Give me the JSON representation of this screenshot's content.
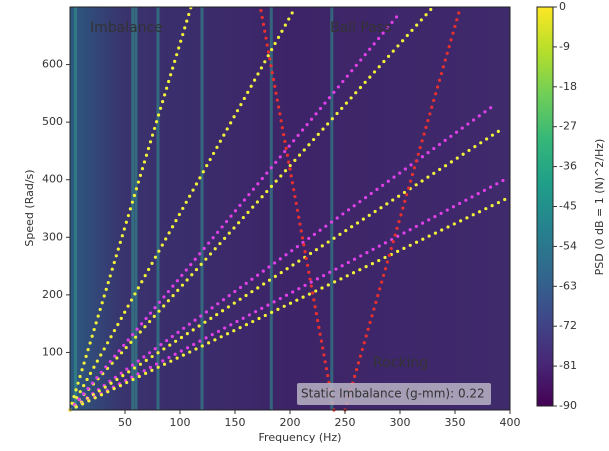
{
  "chart_data": {
    "type": "line",
    "x_label": "Frequency (Hz)",
    "y_label": "Speed (Rad/s)",
    "xlim": [
      0,
      400
    ],
    "ylim": [
      0,
      700
    ],
    "xticks": [
      50,
      100,
      150,
      200,
      250,
      300,
      350,
      400
    ],
    "yticks": [
      100,
      200,
      300,
      400,
      500,
      600
    ],
    "colorbar": {
      "label": "PSD (0 dB = 1 (N)^2/Hz)",
      "zlim": [
        -90,
        0
      ],
      "ticks": [
        0,
        -9,
        -18,
        -27,
        -36,
        -45,
        -54,
        -63,
        -72,
        -81,
        -90
      ],
      "colormap": "viridis"
    },
    "bands": [
      5,
      57,
      60,
      80,
      120,
      183,
      238
    ],
    "series": [
      {
        "color": "#f2f23a",
        "x": [
          0,
          110
        ],
        "values": [
          0,
          700
        ]
      },
      {
        "color": "#f2f23a",
        "x": [
          0,
          205
        ],
        "values": [
          0,
          700
        ]
      },
      {
        "color": "#f2f23a",
        "x": [
          0,
          330
        ],
        "values": [
          0,
          700
        ]
      },
      {
        "color": "#e040e8",
        "x": [
          0,
          300
        ],
        "values": [
          0,
          690
        ]
      },
      {
        "color": "#e040e8",
        "x": [
          0,
          386
        ],
        "values": [
          0,
          530
        ]
      },
      {
        "color": "#f2f23a",
        "x": [
          0,
          391
        ],
        "values": [
          0,
          486
        ]
      },
      {
        "color": "#e040e8",
        "x": [
          0,
          395
        ],
        "values": [
          0,
          400
        ]
      },
      {
        "color": "#f2f23a",
        "x": [
          0,
          400
        ],
        "values": [
          0,
          370
        ]
      },
      {
        "color": "#e8302e",
        "x": [
          240,
          173
        ],
        "values": [
          0,
          700
        ]
      },
      {
        "color": "#e8302e",
        "x": [
          250,
          355
        ],
        "values": [
          0,
          700
        ]
      }
    ],
    "annotations": [
      {
        "text": "Imbalance",
        "color": "#f2f23a"
      },
      {
        "text": "Ball Pass",
        "color": "#e040e8"
      },
      {
        "text": "Rocking",
        "color": "#e8302e"
      },
      {
        "text": "Static Imbalance (g-mm): 0.22",
        "color": "#333333"
      }
    ]
  }
}
